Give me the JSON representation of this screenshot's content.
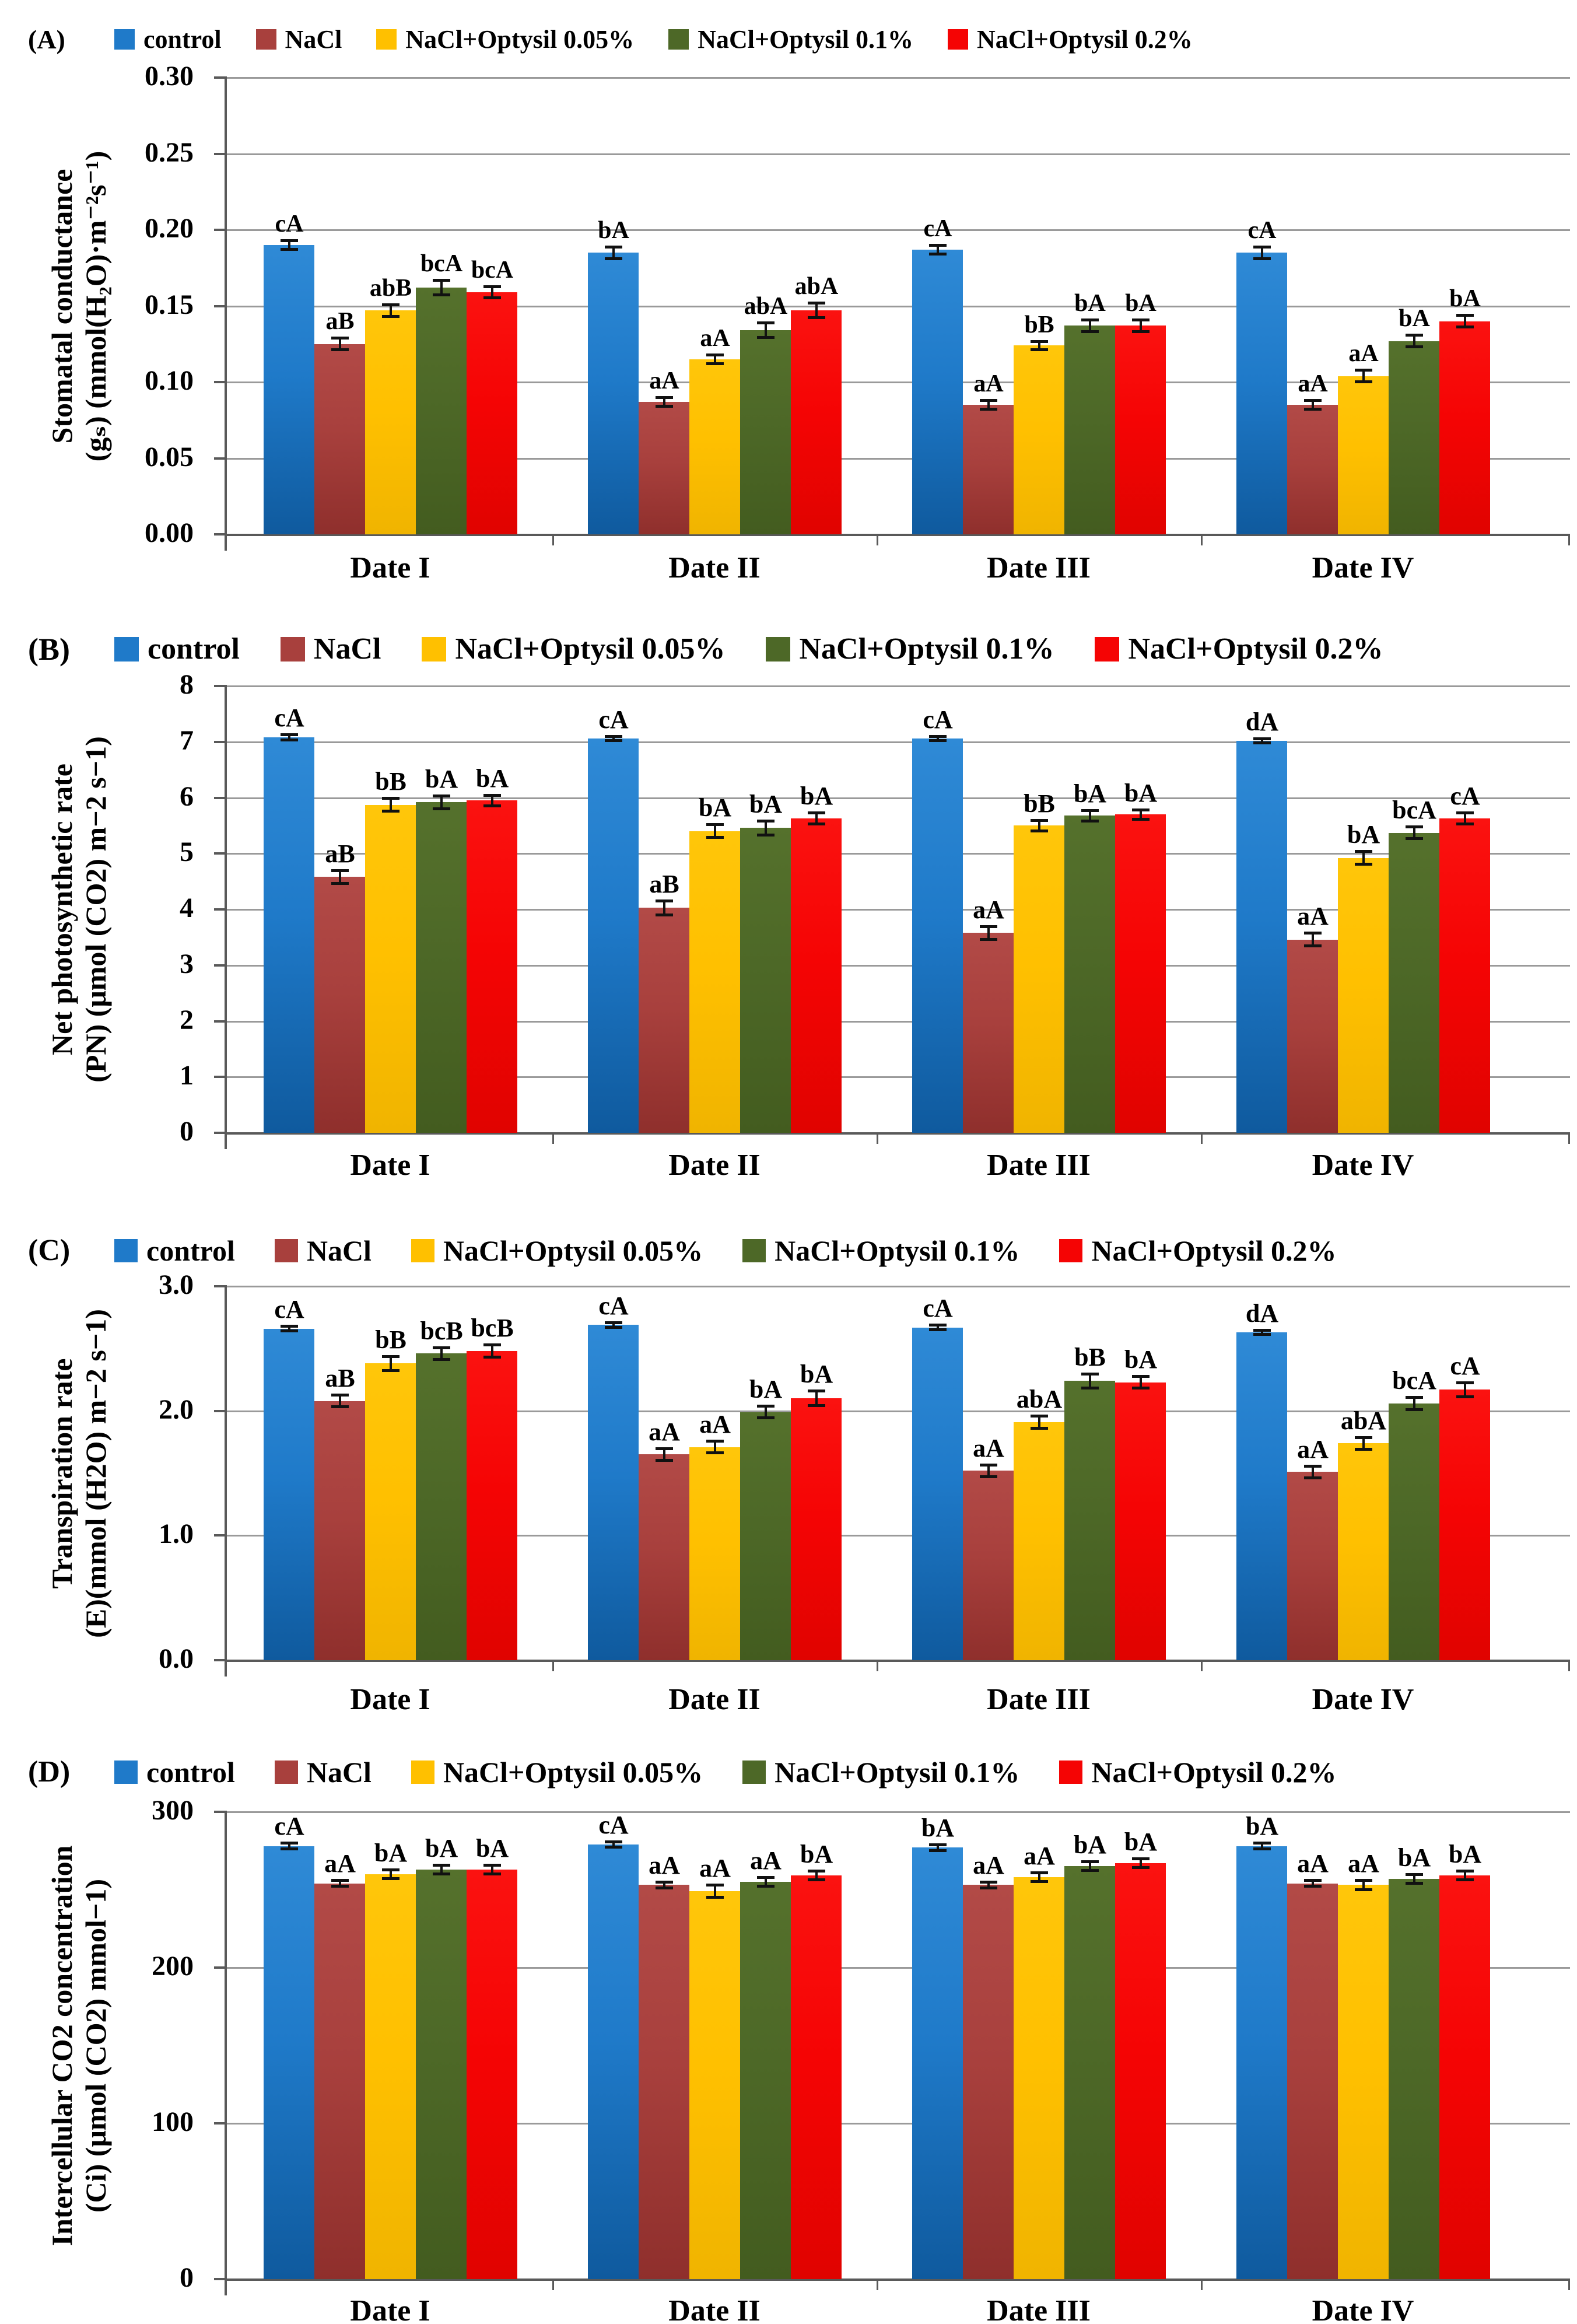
{
  "figure_title": "",
  "categories": [
    "Date I",
    "Date II",
    "Date III",
    "Date IV"
  ],
  "series": [
    {
      "name": "control",
      "color": "#1f7ac9",
      "color_dark": "#0f5a9e",
      "color_light": "#2f8ad6"
    },
    {
      "name": "NaCl",
      "color": "#a8403d",
      "color_dark": "#8f2f2c",
      "color_light": "#b24a47"
    },
    {
      "name": "NaCl+Optysil 0.05%",
      "color": "#ffc000",
      "color_dark": "#f0b400",
      "color_light": "#ffc60a"
    },
    {
      "name": "NaCl+Optysil 0.1%",
      "color": "#4d6827",
      "color_dark": "#435c1f",
      "color_light": "#55712c"
    },
    {
      "name": "NaCl+Optysil 0.2%",
      "color": "#f50404",
      "color_dark": "#e00300",
      "color_light": "#fb1210"
    }
  ],
  "chart_data": [
    {
      "type": "bar",
      "id": "A",
      "panel_letter": "(A)",
      "ylabel_line1": "Stomatal conductance",
      "ylabel_line2": "(gₛ) (mmol(H₂O)·m⁻²s⁻¹)",
      "xlabel": "",
      "ylim": [
        0,
        0.3
      ],
      "yticks": [
        "0.00",
        "0.05",
        "0.10",
        "0.15",
        "0.20",
        "0.25",
        "0.30"
      ],
      "grid": "horizontal",
      "legend_position": "top",
      "categories": [
        "Date I",
        "Date II",
        "Date III",
        "Date IV"
      ],
      "series": [
        {
          "name": "control",
          "values": [
            0.19,
            0.185,
            0.187,
            0.185
          ],
          "errors": [
            0.003,
            0.004,
            0.003,
            0.004
          ],
          "labels": [
            "cA",
            "bA",
            "cA",
            "cA"
          ]
        },
        {
          "name": "NaCl",
          "values": [
            0.125,
            0.087,
            0.085,
            0.085
          ],
          "errors": [
            0.004,
            0.003,
            0.003,
            0.003
          ],
          "labels": [
            "aB",
            "aA",
            "aA",
            "aA"
          ]
        },
        {
          "name": "NaCl+Optysil 0.05%",
          "values": [
            0.147,
            0.115,
            0.124,
            0.104
          ],
          "errors": [
            0.004,
            0.003,
            0.003,
            0.004
          ],
          "labels": [
            "abB",
            "aA",
            "bB",
            "aA"
          ]
        },
        {
          "name": "NaCl+Optysil 0.1%",
          "values": [
            0.162,
            0.134,
            0.137,
            0.127
          ],
          "errors": [
            0.005,
            0.005,
            0.004,
            0.004
          ],
          "labels": [
            "bcA",
            "abA",
            "bA",
            "bA"
          ]
        },
        {
          "name": "NaCl+Optysil 0.2%",
          "values": [
            0.159,
            0.147,
            0.137,
            0.14
          ],
          "errors": [
            0.004,
            0.005,
            0.004,
            0.004
          ],
          "labels": [
            "bcA",
            "abA",
            "bA",
            "bA"
          ]
        }
      ]
    },
    {
      "type": "bar",
      "id": "B",
      "panel_letter": "(B)",
      "ylabel_line1": "Net photosynthetic rate",
      "ylabel_line2": "(PN) (μmol (CO2) m−2 s−1)",
      "xlabel": "",
      "ylim": [
        0,
        8
      ],
      "yticks": [
        "0",
        "1",
        "2",
        "3",
        "4",
        "5",
        "6",
        "7",
        "8"
      ],
      "grid": "horizontal",
      "legend_position": "top",
      "categories": [
        "Date I",
        "Date II",
        "Date III",
        "Date IV"
      ],
      "series": [
        {
          "name": "control",
          "values": [
            7.08,
            7.06,
            7.06,
            7.02
          ],
          "errors": [
            0.05,
            0.04,
            0.04,
            0.04
          ],
          "labels": [
            "cA",
            "cA",
            "cA",
            "dA"
          ]
        },
        {
          "name": "NaCl",
          "values": [
            4.58,
            4.03,
            3.58,
            3.46
          ],
          "errors": [
            0.12,
            0.13,
            0.12,
            0.12
          ],
          "labels": [
            "aB",
            "aB",
            "aA",
            "aA"
          ]
        },
        {
          "name": "NaCl+Optysil 0.05%",
          "values": [
            5.87,
            5.4,
            5.5,
            4.92
          ],
          "errors": [
            0.12,
            0.12,
            0.1,
            0.12
          ],
          "labels": [
            "bB",
            "bA",
            "bB",
            "bA"
          ]
        },
        {
          "name": "NaCl+Optysil 0.1%",
          "values": [
            5.92,
            5.46,
            5.68,
            5.37
          ],
          "errors": [
            0.12,
            0.13,
            0.1,
            0.11
          ],
          "labels": [
            "bA",
            "bA",
            "bA",
            "bcA"
          ]
        },
        {
          "name": "NaCl+Optysil 0.2%",
          "values": [
            5.95,
            5.63,
            5.7,
            5.63
          ],
          "errors": [
            0.1,
            0.1,
            0.09,
            0.1
          ],
          "labels": [
            "bA",
            "bA",
            "bA",
            "cA"
          ]
        }
      ]
    },
    {
      "type": "bar",
      "id": "C",
      "panel_letter": "(C)",
      "ylabel_line1": "Transpiration rate",
      "ylabel_line2": "(E)(mmol (H2O) m−2 s−1)",
      "xlabel": "",
      "ylim": [
        0,
        3.0
      ],
      "yticks": [
        "0.0",
        "1.0",
        "2.0",
        "3.0"
      ],
      "grid": "horizontal",
      "legend_position": "top",
      "categories": [
        "Date I",
        "Date II",
        "Date III",
        "Date IV"
      ],
      "series": [
        {
          "name": "control",
          "values": [
            2.66,
            2.69,
            2.67,
            2.63
          ],
          "errors": [
            0.02,
            0.02,
            0.02,
            0.02
          ],
          "labels": [
            "cA",
            "cA",
            "cA",
            "dA"
          ]
        },
        {
          "name": "NaCl",
          "values": [
            2.08,
            1.65,
            1.52,
            1.51
          ],
          "errors": [
            0.05,
            0.05,
            0.05,
            0.05
          ],
          "labels": [
            "aB",
            "aA",
            "aA",
            "aA"
          ]
        },
        {
          "name": "NaCl+Optysil 0.05%",
          "values": [
            2.38,
            1.71,
            1.91,
            1.74
          ],
          "errors": [
            0.06,
            0.05,
            0.05,
            0.05
          ],
          "labels": [
            "bB",
            "aA",
            "abA",
            "abA"
          ]
        },
        {
          "name": "NaCl+Optysil 0.1%",
          "values": [
            2.46,
            1.99,
            2.24,
            2.06
          ],
          "errors": [
            0.05,
            0.05,
            0.06,
            0.05
          ],
          "labels": [
            "bcB",
            "bA",
            "bB",
            "bcA"
          ]
        },
        {
          "name": "NaCl+Optysil 0.2%",
          "values": [
            2.48,
            2.1,
            2.23,
            2.17
          ],
          "errors": [
            0.05,
            0.06,
            0.05,
            0.06
          ],
          "labels": [
            "bcB",
            "bA",
            "bA",
            "cA"
          ]
        }
      ]
    },
    {
      "type": "bar",
      "id": "D",
      "panel_letter": "(D)",
      "ylabel_line1": "Intercellular CO2 concentration",
      "ylabel_line2": "(Ci) (μmol (CO2) mmol−1)",
      "xlabel": "",
      "ylim": [
        0,
        300
      ],
      "yticks": [
        "0",
        "100",
        "200",
        "300"
      ],
      "grid": "horizontal",
      "legend_position": "top",
      "categories": [
        "Date I",
        "Date II",
        "Date III",
        "Date IV"
      ],
      "series": [
        {
          "name": "control",
          "values": [
            278,
            279,
            277,
            278
          ],
          "errors": [
            2,
            2,
            2,
            2
          ],
          "labels": [
            "cA",
            "cA",
            "bA",
            "bA"
          ]
        },
        {
          "name": "NaCl",
          "values": [
            254,
            253,
            253,
            254
          ],
          "errors": [
            2,
            2,
            2,
            2
          ],
          "labels": [
            "aA",
            "aA",
            "aA",
            "aA"
          ]
        },
        {
          "name": "NaCl+Optysil 0.05%",
          "values": [
            260,
            249,
            258,
            253
          ],
          "errors": [
            3,
            4,
            3,
            3
          ],
          "labels": [
            "bA",
            "aA",
            "aA",
            "aA"
          ]
        },
        {
          "name": "NaCl+Optysil 0.1%",
          "values": [
            263,
            255,
            265,
            257
          ],
          "errors": [
            3,
            3,
            3,
            3
          ],
          "labels": [
            "bA",
            "aA",
            "bA",
            "bA"
          ]
        },
        {
          "name": "NaCl+Optysil 0.2%",
          "values": [
            263,
            259,
            267,
            259
          ],
          "errors": [
            3,
            3,
            3,
            3
          ],
          "labels": [
            "bA",
            "bA",
            "bA",
            "bA"
          ]
        }
      ]
    }
  ]
}
